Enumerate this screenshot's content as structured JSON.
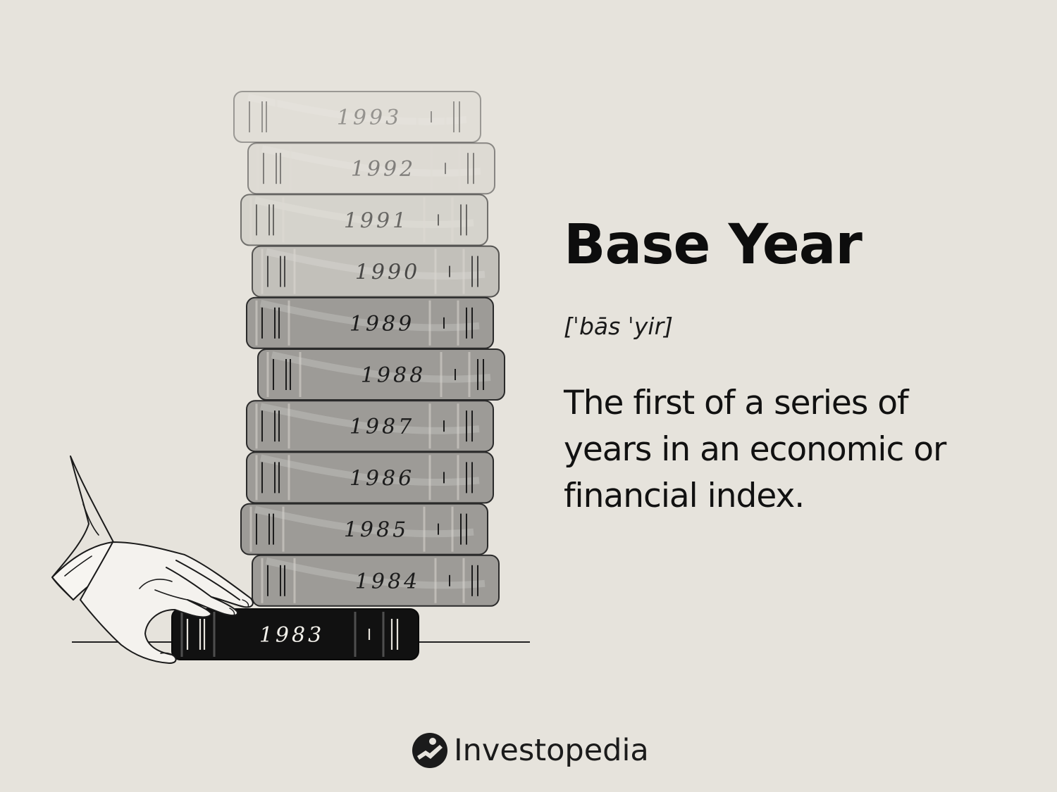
{
  "title": "Base Year",
  "pronunciation": "[ˈbās ˈyir]",
  "definition": "The first of a series of years in an economic or financial index.",
  "brand": {
    "name": "Investopedia",
    "logo_icon": "investopedia-logo-icon"
  },
  "books": [
    {
      "label": "1993",
      "fill": "#dcd9d2",
      "opacity": 0.4
    },
    {
      "label": "1992",
      "fill": "#d6d3cc",
      "opacity": 0.5
    },
    {
      "label": "1991",
      "fill": "#cccac3",
      "opacity": 0.62
    },
    {
      "label": "1990",
      "fill": "#b9b7b1",
      "opacity": 0.78
    },
    {
      "label": "1989",
      "fill": "#9d9b97",
      "opacity": 1
    },
    {
      "label": "1988",
      "fill": "#9d9b97",
      "opacity": 1
    },
    {
      "label": "1987",
      "fill": "#9d9b97",
      "opacity": 1
    },
    {
      "label": "1986",
      "fill": "#9d9b97",
      "opacity": 1
    },
    {
      "label": "1985",
      "fill": "#9d9b97",
      "opacity": 1
    },
    {
      "label": "1984",
      "fill": "#9d9b97",
      "opacity": 1
    },
    {
      "label": "1983",
      "fill": "#111111",
      "opacity": 1
    }
  ],
  "colors": {
    "background": "#e6e3dc",
    "ink": "#111111",
    "base_book": "#111111"
  }
}
